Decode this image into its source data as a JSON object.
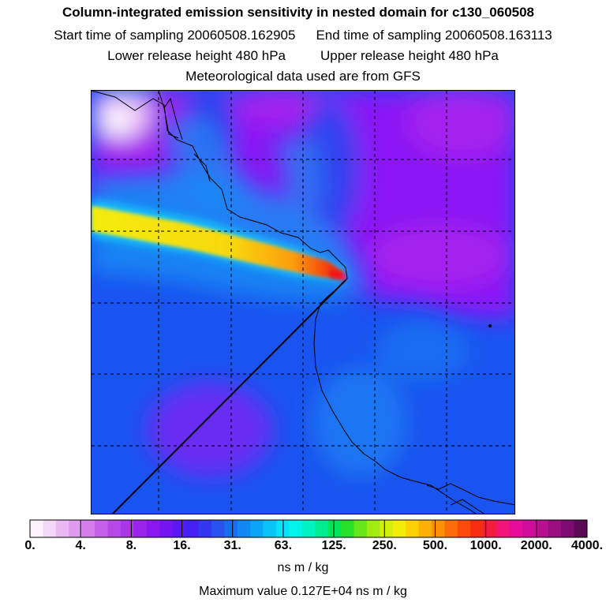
{
  "header": {
    "title": "Column-integrated emission sensitivity in nested domain for c130_060508",
    "start_label": "Start time of sampling 20060508.162905",
    "end_label": "End time of sampling 20060508.163113",
    "lower_label": "Lower release height  480 hPa",
    "upper_label": "Upper release height  480 hPa",
    "met_label": "Meteorological data used are from GFS"
  },
  "colorbar": {
    "tick_labels": [
      "0.",
      "4.",
      "8.",
      "16.",
      "31.",
      "63.",
      "125.",
      "250.",
      "500.",
      "1000.",
      "2000.",
      "4000."
    ],
    "units": "ns m / kg",
    "colors": [
      "#fff4fe",
      "#f4d9f7",
      "#eab8f3",
      "#e09bef",
      "#d57deb",
      "#c560e8",
      "#b548e6",
      "#a636e6",
      "#9a24ec",
      "#8a16f0",
      "#7515f2",
      "#5c18f4",
      "#4420f2",
      "#3436f0",
      "#2a52f0",
      "#1a6cf2",
      "#0f88f4",
      "#0aa6f6",
      "#08c4f8",
      "#02e2f8",
      "#00f4e8",
      "#00f2c0",
      "#00ec90",
      "#00e45a",
      "#26e02a",
      "#66e618",
      "#a0ec10",
      "#d2f00a",
      "#f2ec06",
      "#fcd004",
      "#fcb004",
      "#fc9006",
      "#fc6c08",
      "#fc4a0a",
      "#f82c10",
      "#f41c3c",
      "#f21478",
      "#e80c9c",
      "#d00c9c",
      "#b8108e",
      "#9a0e80",
      "#7c0c70",
      "#5c0a56"
    ]
  },
  "map": {
    "field_colors": {
      "violet": "#8a18f4",
      "purple": "#a424ee",
      "blue": "#1a54f0",
      "medium_blue": "#2a44f0",
      "light_blue": "#1a8cf4",
      "cyan": "#16d4f8",
      "plume_yellow": "#f4ec10",
      "plume_orange": "#fc9c08",
      "plume_red": "#f01414",
      "plume_magenta": "#f0147c"
    },
    "line_color": "#000000",
    "grid_style": "dashed"
  },
  "footer": {
    "max_value": "Maximum value  0.127E+04 ns m / kg"
  }
}
